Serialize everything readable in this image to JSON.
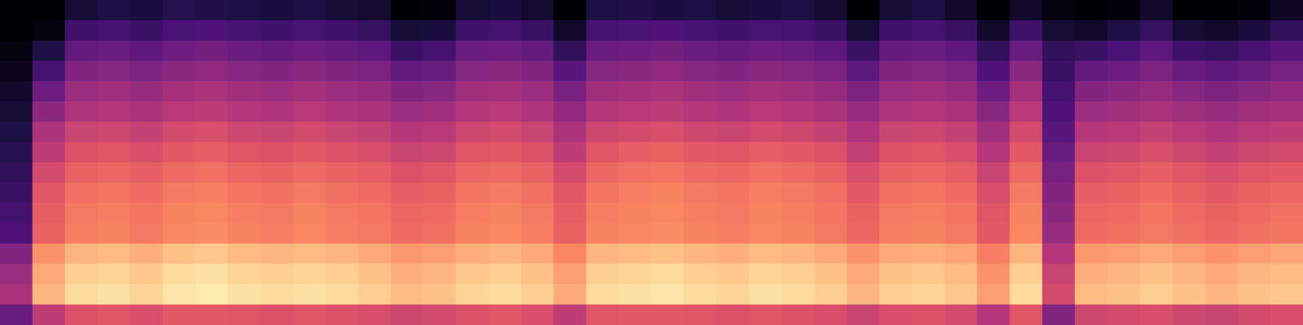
{
  "chart_data": {
    "type": "heatmap",
    "tick_labels": false,
    "zlim": [
      -80,
      0
    ],
    "cells": [
      [
        -80,
        -80,
        -72,
        -70,
        -71,
        -68,
        -69,
        -70,
        -71,
        -70,
        -72,
        -73,
        -80,
        -79,
        -72,
        -71,
        -73,
        -80,
        -70,
        -69,
        -71,
        -70,
        -72,
        -71,
        -70,
        -73,
        -80,
        -72,
        -70,
        -74,
        -80,
        -74,
        -78,
        -80,
        -79,
        -74,
        -80,
        -80,
        -79,
        -75
      ],
      [
        -80,
        -78,
        -63,
        -62,
        -64,
        -61,
        -60,
        -62,
        -63,
        -61,
        -63,
        -65,
        -72,
        -71,
        -63,
        -62,
        -64,
        -74,
        -62,
        -61,
        -60,
        -62,
        -63,
        -61,
        -62,
        -64,
        -72,
        -63,
        -62,
        -64,
        -74,
        -63,
        -72,
        -74,
        -70,
        -65,
        -72,
        -74,
        -71,
        -66
      ],
      [
        -78,
        -70,
        -56,
        -55,
        -57,
        -54,
        -53,
        -55,
        -56,
        -54,
        -56,
        -57,
        -64,
        -62,
        -55,
        -54,
        -56,
        -66,
        -55,
        -54,
        -53,
        -55,
        -56,
        -54,
        -55,
        -57,
        -64,
        -56,
        -55,
        -57,
        -66,
        -55,
        -66,
        -64,
        -61,
        -57,
        -63,
        -65,
        -62,
        -58
      ],
      [
        -76,
        -62,
        -50,
        -49,
        -51,
        -48,
        -47,
        -49,
        -50,
        -48,
        -50,
        -51,
        -56,
        -55,
        -49,
        -48,
        -50,
        -58,
        -49,
        -48,
        -47,
        -49,
        -50,
        -48,
        -49,
        -51,
        -57,
        -50,
        -49,
        -51,
        -60,
        -48,
        -64,
        -56,
        -54,
        -51,
        -55,
        -57,
        -55,
        -52
      ],
      [
        -74,
        -54,
        -45,
        -44,
        -46,
        -43,
        -42,
        -44,
        -45,
        -43,
        -45,
        -46,
        -50,
        -49,
        -44,
        -43,
        -45,
        -52,
        -44,
        -43,
        -42,
        -44,
        -45,
        -43,
        -44,
        -46,
        -51,
        -45,
        -44,
        -46,
        -54,
        -43,
        -62,
        -50,
        -48,
        -46,
        -49,
        -51,
        -49,
        -47
      ],
      [
        -72,
        -48,
        -41,
        -40,
        -42,
        -39,
        -38,
        -40,
        -41,
        -39,
        -41,
        -42,
        -45,
        -44,
        -40,
        -39,
        -41,
        -47,
        -40,
        -39,
        -38,
        -40,
        -41,
        -39,
        -40,
        -42,
        -46,
        -41,
        -40,
        -42,
        -49,
        -39,
        -60,
        -45,
        -44,
        -42,
        -44,
        -46,
        -44,
        -43
      ],
      [
        -70,
        -42,
        -36,
        -35,
        -37,
        -34,
        -33,
        -35,
        -36,
        -34,
        -36,
        -37,
        -40,
        -39,
        -35,
        -34,
        -36,
        -42,
        -35,
        -34,
        -33,
        -35,
        -36,
        -34,
        -35,
        -37,
        -41,
        -36,
        -35,
        -37,
        -44,
        -34,
        -58,
        -40,
        -39,
        -37,
        -39,
        -41,
        -39,
        -38
      ],
      [
        -68,
        -38,
        -32,
        -31,
        -33,
        -30,
        -29,
        -31,
        -32,
        -30,
        -32,
        -33,
        -36,
        -35,
        -31,
        -30,
        -32,
        -38,
        -31,
        -29,
        -28,
        -30,
        -31,
        -29,
        -30,
        -32,
        -37,
        -32,
        -31,
        -33,
        -40,
        -30,
        -55,
        -36,
        -35,
        -33,
        -35,
        -37,
        -35,
        -34
      ],
      [
        -66,
        -34,
        -28,
        -27,
        -29,
        -26,
        -25,
        -27,
        -28,
        -26,
        -28,
        -29,
        -32,
        -31,
        -27,
        -26,
        -28,
        -34,
        -27,
        -25,
        -24,
        -26,
        -27,
        -25,
        -26,
        -28,
        -33,
        -28,
        -27,
        -29,
        -36,
        -26,
        -52,
        -32,
        -31,
        -29,
        -31,
        -33,
        -31,
        -30
      ],
      [
        -64,
        -31,
        -25,
        -24,
        -26,
        -23,
        -22,
        -24,
        -25,
        -23,
        -25,
        -26,
        -29,
        -28,
        -24,
        -23,
        -25,
        -31,
        -24,
        -22,
        -21,
        -23,
        -24,
        -22,
        -23,
        -25,
        -30,
        -25,
        -24,
        -26,
        -33,
        -23,
        -50,
        -29,
        -28,
        -26,
        -28,
        -30,
        -28,
        -27
      ],
      [
        -62,
        -29,
        -23,
        -22,
        -24,
        -21,
        -20,
        -22,
        -23,
        -21,
        -23,
        -24,
        -27,
        -26,
        -22,
        -21,
        -23,
        -29,
        -22,
        -21,
        -20,
        -22,
        -23,
        -21,
        -22,
        -24,
        -28,
        -23,
        -22,
        -24,
        -31,
        -21,
        -48,
        -27,
        -26,
        -24,
        -26,
        -28,
        -26,
        -25
      ],
      [
        -60,
        -28,
        -22,
        -21,
        -23,
        -20,
        -19,
        -21,
        -22,
        -20,
        -22,
        -23,
        -26,
        -25,
        -21,
        -20,
        -22,
        -28,
        -21,
        -20,
        -19,
        -21,
        -22,
        -20,
        -21,
        -23,
        -27,
        -22,
        -21,
        -23,
        -30,
        -20,
        -46,
        -26,
        -25,
        -23,
        -25,
        -27,
        -25,
        -24
      ],
      [
        -50,
        -18,
        -12,
        -11,
        -13,
        -10,
        -9,
        -11,
        -12,
        -11,
        -12,
        -14,
        -17,
        -16,
        -13,
        -12,
        -14,
        -20,
        -12,
        -11,
        -10,
        -12,
        -13,
        -11,
        -12,
        -14,
        -18,
        -14,
        -13,
        -15,
        -22,
        -12,
        -40,
        -17,
        -16,
        -14,
        -16,
        -18,
        -16,
        -15
      ],
      [
        -45,
        -14,
        -8,
        -7,
        -9,
        -6,
        -5,
        -7,
        -8,
        -7,
        -8,
        -10,
        -13,
        -12,
        -9,
        -8,
        -10,
        -16,
        -8,
        -7,
        -6,
        -8,
        -9,
        -7,
        -8,
        -10,
        -14,
        -10,
        -9,
        -11,
        -18,
        -8,
        -36,
        -13,
        -12,
        -10,
        -12,
        -14,
        -12,
        -11
      ],
      [
        -42,
        -12,
        -6,
        -5,
        -7,
        -4,
        -3,
        -5,
        -6,
        -5,
        -6,
        -8,
        -11,
        -10,
        -7,
        -6,
        -8,
        -14,
        -6,
        -5,
        -4,
        -6,
        -7,
        -5,
        -6,
        -8,
        -12,
        -8,
        -7,
        -9,
        -16,
        -6,
        -34,
        -11,
        -10,
        -8,
        -10,
        -12,
        -10,
        -9
      ],
      [
        -55,
        -38,
        -32,
        -31,
        -33,
        -30,
        -30,
        -31,
        -32,
        -31,
        -32,
        -33,
        -35,
        -34,
        -32,
        -31,
        -33,
        -38,
        -31,
        -30,
        -30,
        -31,
        -32,
        -31,
        -32,
        -33,
        -36,
        -33,
        -32,
        -34,
        -40,
        -31,
        -50,
        -35,
        -34,
        -33,
        -35,
        -36,
        -34,
        -33
      ]
    ]
  }
}
